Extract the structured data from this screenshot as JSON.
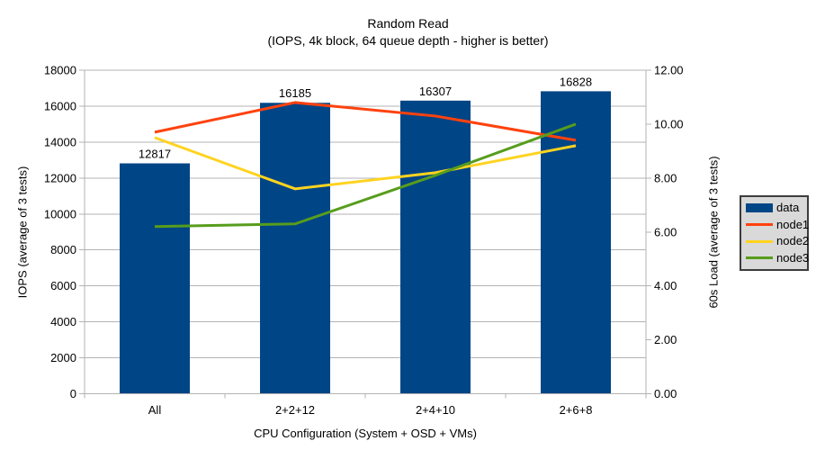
{
  "title": {
    "line1": "Random Read",
    "line2": "(IOPS, 4k block, 64 queue depth - higher is better)"
  },
  "chart_data": {
    "type": "bar",
    "subtype": "bar-line-combo",
    "categories": [
      "All",
      "2+2+12",
      "2+4+10",
      "2+6+8"
    ],
    "bar_series": {
      "name": "data",
      "axis": "left",
      "values": [
        12817,
        16185,
        16307,
        16828
      ],
      "data_labels": [
        "12817",
        "16185",
        "16307",
        "16828"
      ],
      "color": "#004586"
    },
    "line_series": [
      {
        "name": "node1",
        "axis": "right",
        "color": "#ff420e",
        "values": [
          9.7,
          10.8,
          10.3,
          9.4
        ]
      },
      {
        "name": "node2",
        "axis": "right",
        "color": "#ffd320",
        "values": [
          9.5,
          7.6,
          8.2,
          9.2
        ]
      },
      {
        "name": "node3",
        "axis": "right",
        "color": "#579d1c",
        "values": [
          6.2,
          6.3,
          8.1,
          10.0
        ]
      }
    ],
    "left_axis": {
      "label": "IOPS (average of 3 tests)",
      "min": 0,
      "max": 18000,
      "step": 2000,
      "decimals": 0
    },
    "right_axis": {
      "label": "60s Load (average of 3 tests)",
      "min": 0,
      "max": 12,
      "step": 2,
      "decimals": 2
    },
    "xlabel": "CPU Configuration (System + OSD + VMs)",
    "grid": true,
    "legend_position": "right",
    "colors": {
      "grid": "#b3b3b3",
      "axis": "#b3b3b3",
      "text": "#000000",
      "legend_bg": "#d9d9d9",
      "legend_border": "#3c3c3c",
      "background": "#ffffff"
    }
  }
}
